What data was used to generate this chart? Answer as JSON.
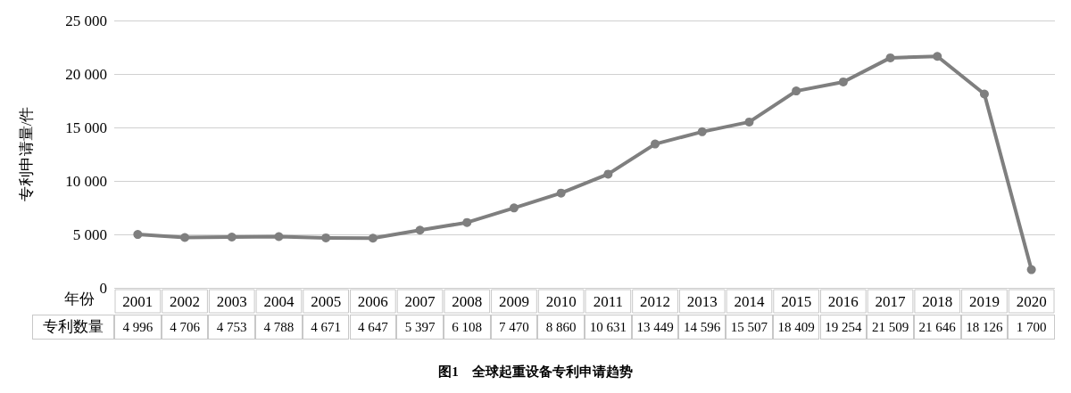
{
  "chart_data": {
    "type": "line",
    "title": "图1　全球起重设备专利申请趋势",
    "xlabel": "年份",
    "ylabel": "专利申请量/件",
    "categories": [
      "2001",
      "2002",
      "2003",
      "2004",
      "2005",
      "2006",
      "2007",
      "2008",
      "2009",
      "2010",
      "2011",
      "2012",
      "2013",
      "2014",
      "2015",
      "2016",
      "2017",
      "2018",
      "2019",
      "2020"
    ],
    "series": [
      {
        "name": "专利数量",
        "color": "#7f7f7f",
        "values": [
          4996,
          4706,
          4753,
          4788,
          4671,
          4647,
          5397,
          6108,
          7470,
          8860,
          10631,
          13449,
          14596,
          15507,
          18409,
          19254,
          21509,
          21646,
          18126,
          1700
        ],
        "value_labels": [
          "4 996",
          "4 706",
          "4 753",
          "4 788",
          "4 671",
          "4 647",
          "5 397",
          "6 108",
          "7 470",
          "8 860",
          "10 631",
          "13 449",
          "14 596",
          "15 507",
          "18 409",
          "19 254",
          "21 509",
          "21 646",
          "18 126",
          "1 700"
        ]
      }
    ],
    "ylim": [
      0,
      25000
    ],
    "yticks": [
      {
        "value": 0,
        "label": "0"
      },
      {
        "value": 5000,
        "label": "5 000"
      },
      {
        "value": 10000,
        "label": "10 000"
      },
      {
        "value": 15000,
        "label": "15 000"
      },
      {
        "value": 20000,
        "label": "20 000"
      },
      {
        "value": 25000,
        "label": "25 000"
      }
    ],
    "grid": "y",
    "legend": false,
    "marker": "circle",
    "line_style": "solid"
  }
}
